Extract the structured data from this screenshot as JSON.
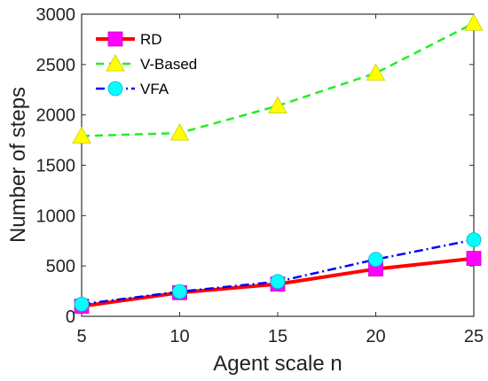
{
  "chart_data": {
    "type": "line",
    "title": "",
    "xlabel": "Agent scale n",
    "ylabel": "Number of steps",
    "x": [
      5,
      10,
      15,
      20,
      25
    ],
    "xlim": [
      5,
      25
    ],
    "ylim": [
      0,
      3000
    ],
    "xticks": [
      "5",
      "10",
      "15",
      "20",
      "25"
    ],
    "yticks": [
      "0",
      "500",
      "1000",
      "1500",
      "2000",
      "2500",
      "3000"
    ],
    "grid": false,
    "legend_position": "top-left",
    "series": [
      {
        "name": "RD",
        "values": [
          100,
          235,
          320,
          470,
          575
        ],
        "color": "#ff0000",
        "marker": "square",
        "marker_color": "#ff00ff",
        "line_style": "solid"
      },
      {
        "name": "V-Based",
        "values": [
          1790,
          1820,
          2090,
          2415,
          2910
        ],
        "color": "#22ee22",
        "marker": "triangle",
        "marker_color": "#ffff00",
        "line_style": "dashed"
      },
      {
        "name": "VFA",
        "values": [
          120,
          245,
          345,
          565,
          760
        ],
        "color": "#0000ff",
        "marker": "circle",
        "marker_color": "#00ffff",
        "line_style": "dashdot"
      }
    ]
  }
}
